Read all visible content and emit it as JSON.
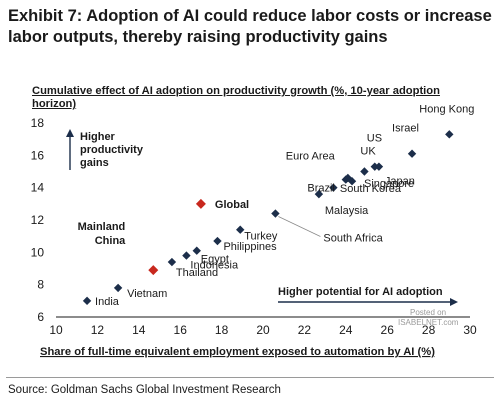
{
  "title": "Exhibit 7: Adoption of AI could reduce labor costs or increase labor outputs, thereby raising productivity gains",
  "source": "Source: Goldman Sachs Global Investment Research",
  "watermark": {
    "line1": "Posted on",
    "line2": "ISABELNET.com"
  },
  "chart_data": {
    "type": "scatter",
    "title": "",
    "ylabel": "Cumulative effect of AI adoption on productivity growth (%, 10-year adoption horizon)",
    "xlabel": "Share of full-time equivalent employment exposed to automation by AI (%)",
    "xlim": [
      10,
      30
    ],
    "ylim": [
      6,
      18
    ],
    "xticks": [
      10,
      12,
      14,
      16,
      18,
      20,
      22,
      24,
      26,
      28,
      30
    ],
    "yticks": [
      6,
      8,
      10,
      12,
      14,
      16,
      18
    ],
    "grid": false,
    "annotations": {
      "y_arrow": "Higher productivity gains",
      "x_arrow": "Higher potential for AI adoption"
    },
    "colors": {
      "country": "#1c2e4a",
      "highlight": "#c8281e"
    },
    "points": [
      {
        "label": "India",
        "x": 11.5,
        "y": 7.0,
        "highlight": false
      },
      {
        "label": "Vietnam",
        "x": 13.0,
        "y": 7.8,
        "highlight": false
      },
      {
        "label": "Mainland China",
        "x": 14.7,
        "y": 8.9,
        "highlight": true
      },
      {
        "label": "Thailand",
        "x": 15.6,
        "y": 9.4,
        "highlight": false
      },
      {
        "label": "Indonesia",
        "x": 16.3,
        "y": 9.8,
        "highlight": false
      },
      {
        "label": "Egypt",
        "x": 16.8,
        "y": 10.1,
        "highlight": false
      },
      {
        "label": "Philippines",
        "x": 17.8,
        "y": 10.7,
        "highlight": false
      },
      {
        "label": "Global",
        "x": 17.0,
        "y": 13.0,
        "highlight": true
      },
      {
        "label": "Turkey",
        "x": 18.9,
        "y": 11.4,
        "highlight": false
      },
      {
        "label": "South Africa",
        "x": 20.6,
        "y": 12.4,
        "highlight": false
      },
      {
        "label": "Malaysia",
        "x": 22.7,
        "y": 13.6,
        "highlight": false
      },
      {
        "label": "Brazil",
        "x": 23.4,
        "y": 14.0,
        "highlight": false
      },
      {
        "label": "Euro Area",
        "x": 24.0,
        "y": 14.5,
        "highlight": false
      },
      {
        "label": "Singapore",
        "x": 24.3,
        "y": 14.4,
        "highlight": false
      },
      {
        "label": "South Korea",
        "x": 24.1,
        "y": 14.6,
        "highlight": false
      },
      {
        "label": "UK",
        "x": 24.9,
        "y": 15.0,
        "highlight": false
      },
      {
        "label": "US",
        "x": 25.4,
        "y": 15.3,
        "highlight": false
      },
      {
        "label": "Japan",
        "x": 25.6,
        "y": 15.3,
        "highlight": false
      },
      {
        "label": "Israel",
        "x": 27.2,
        "y": 16.1,
        "highlight": false
      },
      {
        "label": "Hong Kong",
        "x": 29.0,
        "y": 17.3,
        "highlight": false
      }
    ]
  }
}
